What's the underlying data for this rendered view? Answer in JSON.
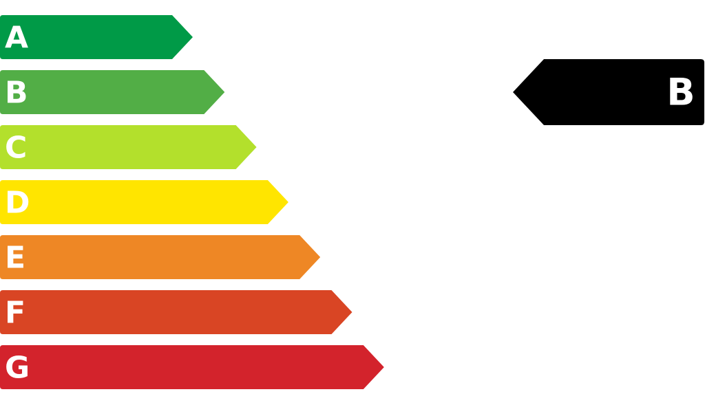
{
  "ratings": [
    {
      "label": "A",
      "color": "#009a47"
    },
    {
      "label": "B",
      "color": "#52ae46"
    },
    {
      "label": "C",
      "color": "#b3e02c"
    },
    {
      "label": "D",
      "color": "#ffe500"
    },
    {
      "label": "E",
      "color": "#ee8725"
    },
    {
      "label": "F",
      "color": "#d94524"
    },
    {
      "label": "G",
      "color": "#d3232c"
    }
  ],
  "indicator": {
    "label": "B",
    "color": "#000000"
  }
}
